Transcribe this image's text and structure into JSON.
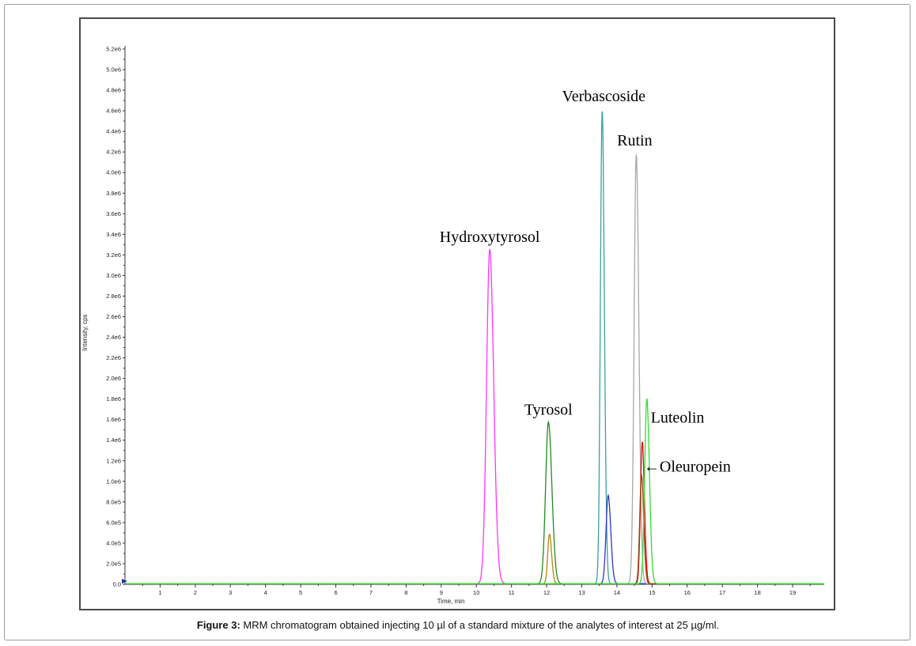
{
  "figure": {
    "caption_label": "Figure 3:",
    "caption_text": " MRM chromatogram obtained injecting 10 µl of a standard mixture of the analytes of interest at 25 µg/ml."
  },
  "chart_data": {
    "type": "line",
    "xlabel": "Time, min",
    "ylabel": "Intensity, cps",
    "xlim": [
      0,
      19.9
    ],
    "ylim": [
      0,
      5200000
    ],
    "x_ticks": [
      1,
      2,
      3,
      4,
      5,
      6,
      7,
      8,
      9,
      10,
      11,
      12,
      13,
      14,
      15,
      16,
      17,
      18,
      19
    ],
    "y_ticks": [
      {
        "value": 0,
        "label": "0.0"
      },
      {
        "value": 200000,
        "label": "2.0e5"
      },
      {
        "value": 400000,
        "label": "4.0e5"
      },
      {
        "value": 600000,
        "label": "6.0e5"
      },
      {
        "value": 800000,
        "label": "8.0e5"
      },
      {
        "value": 1000000,
        "label": "1.0e6"
      },
      {
        "value": 1200000,
        "label": "1.2e6"
      },
      {
        "value": 1400000,
        "label": "1.4e6"
      },
      {
        "value": 1600000,
        "label": "1.6e6"
      },
      {
        "value": 1800000,
        "label": "1.8e6"
      },
      {
        "value": 2000000,
        "label": "2.0e6"
      },
      {
        "value": 2200000,
        "label": "2.2e6"
      },
      {
        "value": 2400000,
        "label": "2.4e6"
      },
      {
        "value": 2600000,
        "label": "2.6e6"
      },
      {
        "value": 2800000,
        "label": "2.8e6"
      },
      {
        "value": 3000000,
        "label": "3.0e6"
      },
      {
        "value": 3200000,
        "label": "3.2e6"
      },
      {
        "value": 3400000,
        "label": "3.4e6"
      },
      {
        "value": 3600000,
        "label": "3.6e6"
      },
      {
        "value": 3800000,
        "label": "3.8e6"
      },
      {
        "value": 4000000,
        "label": "4.0e6"
      },
      {
        "value": 4200000,
        "label": "4.2e6"
      },
      {
        "value": 4400000,
        "label": "4.4e6"
      },
      {
        "value": 4600000,
        "label": "4.6e6"
      },
      {
        "value": 4800000,
        "label": "4.8e6"
      },
      {
        "value": 5000000,
        "label": "5.0e6"
      },
      {
        "value": 5200000,
        "label": "5.2e6"
      }
    ],
    "series": [
      {
        "color": "#ff33ff",
        "peaks": [
          {
            "rt": 10.38,
            "height": 3250000,
            "width": 0.09
          }
        ]
      },
      {
        "color": "#228b22",
        "peaks": [
          {
            "rt": 12.05,
            "height": 1570000,
            "width": 0.08
          }
        ]
      },
      {
        "color": "#b8860b",
        "peaks": [
          {
            "rt": 12.08,
            "height": 480000,
            "width": 0.05
          }
        ]
      },
      {
        "color": "#3aa0a0",
        "peaks": [
          {
            "rt": 13.58,
            "height": 4600000,
            "width": 0.05
          }
        ]
      },
      {
        "color": "#3333cc",
        "peaks": [
          {
            "rt": 13.75,
            "height": 860000,
            "width": 0.06
          }
        ]
      },
      {
        "color": "#a8a8a8",
        "peaks": [
          {
            "rt": 14.55,
            "height": 4170000,
            "width": 0.06
          }
        ]
      },
      {
        "color": "#ff0000",
        "peaks": [
          {
            "rt": 14.72,
            "height": 1380000,
            "width": 0.05
          }
        ]
      },
      {
        "color": "#8b4513",
        "peaks": [
          {
            "rt": 14.7,
            "height": 1050000,
            "width": 0.05
          }
        ]
      },
      {
        "color": "#33dd33",
        "peaks": [
          {
            "rt": 14.85,
            "height": 1800000,
            "width": 0.06
          }
        ]
      }
    ],
    "annotations": [
      {
        "text": "Hydroxytyrosol",
        "x": 10.38,
        "y": 3250000
      },
      {
        "text": "Tyrosol",
        "x": 12.05,
        "y": 1570000
      },
      {
        "text": "Verbascoside",
        "x": 13.58,
        "y": 4600000
      },
      {
        "text": "Rutin",
        "x": 14.55,
        "y": 4170000
      },
      {
        "text": "Luteolin",
        "x": 14.85,
        "y": 1800000
      },
      {
        "text": "←Oleuropein",
        "x": 14.72,
        "y": 1050000
      }
    ],
    "grid": false,
    "legend": "none"
  }
}
